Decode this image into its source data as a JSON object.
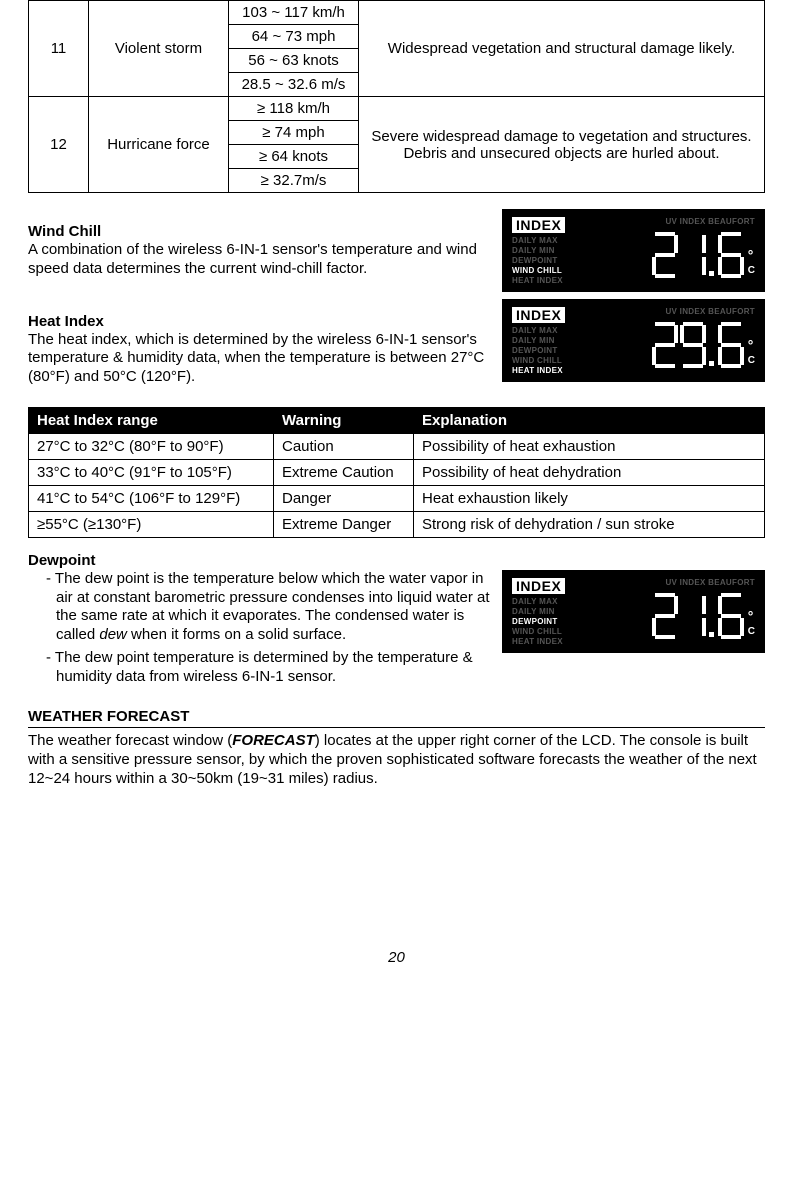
{
  "beaufort": {
    "rows": [
      {
        "num": "11",
        "desc": "Violent storm",
        "speeds": [
          "103 ~ 117 km/h",
          "64 ~ 73 mph",
          "56 ~ 63 knots",
          "28.5 ~ 32.6 m/s"
        ],
        "effect": "Widespread vegetation and structural damage likely."
      },
      {
        "num": "12",
        "desc": "Hurricane force",
        "speeds": [
          "≥ 118 km/h",
          "≥ 74 mph",
          "≥ 64 knots",
          "≥ 32.7m/s"
        ],
        "effect": "Severe widespread damage to vegetation and structures. Debris and unsecured objects are hurled about."
      }
    ]
  },
  "windchill": {
    "title": "Wind Chill",
    "text": "A combination of the wireless  6-IN-1 sensor's temperature and wind speed data determines the current wind-chill factor.",
    "display": {
      "active_label": "WIND CHILL",
      "value_digits": "21.6",
      "unit": "C"
    }
  },
  "heatindex": {
    "title": "Heat Index",
    "text": "The heat index, which is determined by the wireless 6-IN-1 sensor's temperature & humidity data, when the temperature is between 27°C (80°F) and 50°C (120°F).",
    "display": {
      "active_label": "HEAT INDEX",
      "value_digits": "29.6",
      "unit": "C"
    },
    "table": {
      "headers": [
        "Heat Index range",
        "Warning",
        "Explanation"
      ],
      "rows": [
        [
          "27°C to 32°C (80°F to 90°F)",
          "Caution",
          "Possibility of heat exhaustion"
        ],
        [
          "33°C to 40°C (91°F to 105°F)",
          "Extreme Caution",
          "Possibility of heat dehydration"
        ],
        [
          "41°C to 54°C (106°F to 129°F)",
          "Danger",
          "Heat exhaustion likely"
        ],
        [
          "≥55°C (≥130°F)",
          "Extreme Danger",
          "Strong risk of dehydration / sun stroke"
        ]
      ]
    }
  },
  "dewpoint": {
    "title": "Dewpoint",
    "bullets": [
      "The dew point is the temperature below which the water vapor in air at constant barometric pressure condenses into liquid water at the same rate at which it evaporates. The condensed water is called <em>dew</em> when it forms on a solid surface.",
      "The dew point temperature is determined by the temperature & humidity data from wireless  6-IN-1 sensor."
    ],
    "display": {
      "active_label": "DEWPOINT",
      "value_digits": "21.6",
      "unit": "C"
    }
  },
  "lcd_labels": {
    "index": "INDEX",
    "toprow": "UV INDEX   BEAUFORT",
    "side": [
      "DAILY MAX",
      "DAILY MIN",
      "DEWPOINT",
      "WIND CHILL",
      "HEAT INDEX"
    ]
  },
  "forecast": {
    "title": "WEATHER FORECAST",
    "text_pre": "The weather forecast window (",
    "text_bold": "FORECAST",
    "text_post": ") locates at the upper right corner of the LCD. The console is built with a sensitive pressure sensor, by which the proven sophisticated software forecasts the weather of the next 12~24 hours within a 30~50km (19~31 miles) radius."
  },
  "page_number": "20"
}
